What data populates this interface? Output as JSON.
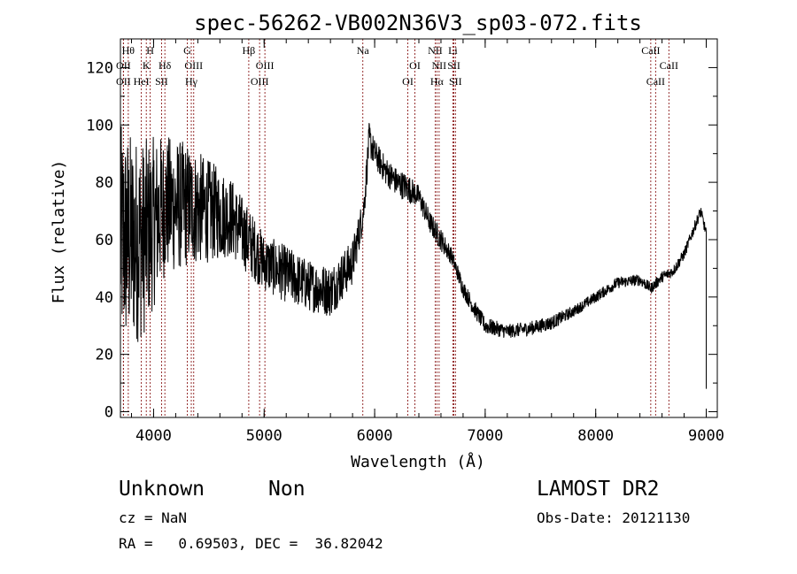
{
  "chart_data": {
    "type": "line",
    "title": "spec-56262-VB002N36V3_sp03-072.fits",
    "xlabel": "Wavelength (Å)",
    "ylabel": "Flux (relative)",
    "xlim": [
      3700,
      9100
    ],
    "ylim": [
      -2,
      130
    ],
    "xticks": [
      4000,
      5000,
      6000,
      7000,
      8000,
      9000
    ],
    "xtick_labels": [
      "4000",
      "5000",
      "6000",
      "7000",
      "8000",
      "9000"
    ],
    "yticks": [
      0,
      20,
      40,
      60,
      80,
      100,
      120
    ],
    "ytick_labels": [
      "0",
      "20",
      "40",
      "60",
      "80",
      "100",
      "120"
    ],
    "grid": false,
    "line_color": "#000000",
    "marker_color": "#8b1a1a",
    "spectrum_envelope": {
      "x": [
        3700,
        3900,
        4100,
        4300,
        4500,
        4700,
        4850,
        5000,
        5200,
        5400,
        5600,
        5800,
        5900,
        5950,
        6000,
        6100,
        6200,
        6300,
        6400,
        6500,
        6600,
        6700,
        6800,
        6900,
        7000,
        7200,
        7400,
        7600,
        7800,
        8000,
        8200,
        8400,
        8500,
        8600,
        8700,
        8800,
        8900,
        8950,
        9000
      ],
      "y": [
        60,
        60,
        72,
        72,
        70,
        68,
        60,
        52,
        48,
        44,
        42,
        52,
        70,
        95,
        90,
        84,
        80,
        78,
        75,
        66,
        60,
        54,
        43,
        36,
        30,
        28,
        29,
        31,
        35,
        40,
        45,
        46,
        43,
        47,
        49,
        55,
        65,
        70,
        62
      ],
      "noise": [
        40,
        35,
        25,
        22,
        18,
        14,
        12,
        10,
        10,
        9,
        9,
        8,
        6,
        6,
        5,
        5,
        5,
        5,
        4,
        4,
        4,
        3,
        3,
        3,
        3,
        2.5,
        2.5,
        2.5,
        2,
        2,
        2,
        2,
        2,
        2,
        2,
        2,
        2,
        2,
        2
      ]
    },
    "line_markers": [
      {
        "wavelength": 3727,
        "label": "OII",
        "row": 2
      },
      {
        "wavelength": 3727,
        "label": "OII",
        "row": 3
      },
      {
        "wavelength": 3771,
        "label": "Hθ",
        "row": 1
      },
      {
        "wavelength": 3889,
        "label": "HeI",
        "row": 3
      },
      {
        "wavelength": 3934,
        "label": "K",
        "row": 2
      },
      {
        "wavelength": 3969,
        "label": "H",
        "row": 1
      },
      {
        "wavelength": 4072,
        "label": "SII",
        "row": 3
      },
      {
        "wavelength": 4102,
        "label": "Hδ",
        "row": 2
      },
      {
        "wavelength": 4305,
        "label": "G",
        "row": 1
      },
      {
        "wavelength": 4341,
        "label": "Hγ",
        "row": 3
      },
      {
        "wavelength": 4363,
        "label": "OIII",
        "row": 2
      },
      {
        "wavelength": 4861,
        "label": "Hβ",
        "row": 1
      },
      {
        "wavelength": 4959,
        "label": "OIII",
        "row": 3
      },
      {
        "wavelength": 5007,
        "label": "OIII",
        "row": 2
      },
      {
        "wavelength": 5893,
        "label": "Na",
        "row": 1
      },
      {
        "wavelength": 6300,
        "label": "OI",
        "row": 3
      },
      {
        "wavelength": 6364,
        "label": "OI",
        "row": 2
      },
      {
        "wavelength": 6548,
        "label": "NII",
        "row": 1
      },
      {
        "wavelength": 6563,
        "label": "Hα",
        "row": 3
      },
      {
        "wavelength": 6583,
        "label": "NII",
        "row": 2
      },
      {
        "wavelength": 6708,
        "label": "Li",
        "row": 1
      },
      {
        "wavelength": 6717,
        "label": "SII",
        "row": 2
      },
      {
        "wavelength": 6731,
        "label": "SII",
        "row": 3
      },
      {
        "wavelength": 8498,
        "label": "CaII",
        "row": 1
      },
      {
        "wavelength": 8542,
        "label": "CaII",
        "row": 3
      },
      {
        "wavelength": 8662,
        "label": "CaII",
        "row": 2
      }
    ]
  },
  "info": {
    "class_label": "Unknown",
    "subclass_label": "Non",
    "survey": "LAMOST DR2",
    "cz": "cz = NaN",
    "obs_date": "Obs-Date: 20121130",
    "radec": "RA =   0.69503, DEC =  36.82042"
  }
}
